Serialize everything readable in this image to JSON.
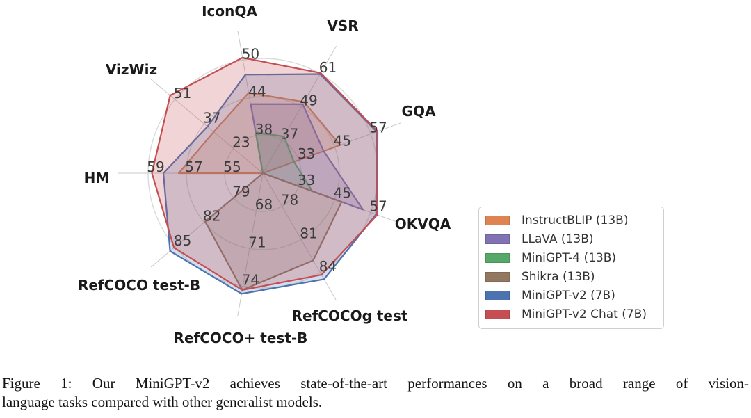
{
  "figure": {
    "caption_line1": "Figure 1: Our MiniGPT-v2 achieves state-of-the-art performances on a broad range of vision-",
    "caption_line2": "language tasks compared with other generalist models."
  },
  "chart_data": {
    "type": "radar",
    "grid": true,
    "legend_position": "right",
    "axes": [
      {
        "label": "IconQA",
        "ticks": [
          38,
          44,
          50
        ]
      },
      {
        "label": "VSR",
        "ticks": [
          37,
          49,
          61
        ]
      },
      {
        "label": "GQA",
        "ticks": [
          33,
          45,
          57
        ]
      },
      {
        "label": "OKVQA",
        "ticks": [
          33,
          45,
          57
        ]
      },
      {
        "label": "RefCOCOg test",
        "ticks": [
          78,
          81,
          84
        ]
      },
      {
        "label": "RefCOCO+ test-B",
        "ticks": [
          68,
          71,
          74
        ]
      },
      {
        "label": "RefCOCO test-B",
        "ticks": [
          79,
          82,
          85
        ]
      },
      {
        "label": "HM",
        "ticks": [
          55,
          57,
          59
        ]
      },
      {
        "label": "VizWiz",
        "ticks": [
          23,
          37,
          51
        ]
      }
    ],
    "series": [
      {
        "name": "InstructBLIP (13B)",
        "color": "#DD8452",
        "values": [
          44.8,
          50.8,
          46.8,
          null,
          null,
          null,
          null,
          57.4,
          32.5
        ]
      },
      {
        "name": "LLaVA (13B)",
        "color": "#8172B3",
        "values": [
          43.0,
          50.0,
          41.3,
          54.4,
          null,
          null,
          null,
          null,
          null
        ]
      },
      {
        "name": "MiniGPT-4 (13B)",
        "color": "#55A868",
        "values": [
          38.5,
          38.3,
          31.4,
          37.5,
          null,
          null,
          null,
          null,
          null
        ]
      },
      {
        "name": "Shikra (13B)",
        "color": "#937860",
        "values": [
          null,
          null,
          null,
          47.3,
          82.9,
          74.3,
          81.9,
          null,
          null
        ]
      },
      {
        "name": "MiniGPT-v2 (7B)",
        "color": "#4C72B0",
        "values": [
          47.7,
          60.9,
          59.0,
          58.8,
          84.6,
          74.6,
          85.5,
          58.2,
          35.5
        ]
      },
      {
        "name": "MiniGPT-v2 Chat (7B)",
        "color": "#C44E52",
        "values": [
          50.4,
          61.3,
          59.3,
          59.2,
          84.2,
          74.3,
          85.1,
          58.8,
          53.3
        ]
      }
    ]
  }
}
